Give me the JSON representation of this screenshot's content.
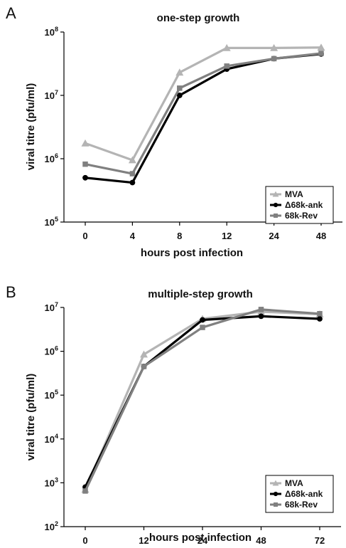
{
  "chart_data": [
    {
      "panel": "A",
      "type": "line",
      "title": "one-step growth",
      "xlabel": "hours post infection",
      "ylabel": "viral titre (pfu/ml)",
      "y_scale": "log",
      "ylim_exp": [
        5,
        8
      ],
      "y_ticks": [
        {
          "base": "10",
          "exp": "5"
        },
        {
          "base": "10",
          "exp": "6"
        },
        {
          "base": "10",
          "exp": "7"
        },
        {
          "base": "10",
          "exp": "8"
        }
      ],
      "categories": [
        "0",
        "4",
        "8",
        "12",
        "24",
        "48"
      ],
      "series": [
        {
          "name": "MVA",
          "color": "#b4b4b4",
          "marker": "triangle",
          "values": [
            1750000,
            950000,
            23000000,
            56000000,
            56000000,
            57000000
          ]
        },
        {
          "name": "Δ68k-ank",
          "color": "#000000",
          "marker": "circle",
          "values": [
            500000,
            420000,
            10000000,
            26000000,
            38000000,
            45000000
          ]
        },
        {
          "name": "68k-Rev",
          "color": "#808080",
          "marker": "square",
          "values": [
            820000,
            580000,
            13000000,
            29000000,
            38000000,
            46000000
          ]
        }
      ],
      "legend": "middle-right",
      "grid": false
    },
    {
      "panel": "B",
      "type": "line",
      "title": "multiple-step growth",
      "xlabel": "hours post infection",
      "ylabel": "viral titre (pfu/ml)",
      "y_scale": "log",
      "ylim_exp": [
        2,
        7
      ],
      "y_ticks": [
        {
          "base": "10",
          "exp": "2"
        },
        {
          "base": "10",
          "exp": "3"
        },
        {
          "base": "10",
          "exp": "4"
        },
        {
          "base": "10",
          "exp": "5"
        },
        {
          "base": "10",
          "exp": "6"
        },
        {
          "base": "10",
          "exp": "7"
        }
      ],
      "categories": [
        "0",
        "12",
        "24",
        "48",
        "72"
      ],
      "series": [
        {
          "name": "MVA",
          "color": "#b4b4b4",
          "marker": "triangle",
          "values": [
            700,
            850000,
            5500000,
            8000000,
            7000000
          ]
        },
        {
          "name": "Δ68k-ank",
          "color": "#000000",
          "marker": "circle",
          "values": [
            800,
            450000,
            5200000,
            6300000,
            5500000
          ]
        },
        {
          "name": "68k-Rev",
          "color": "#808080",
          "marker": "square",
          "values": [
            650,
            450000,
            3500000,
            9000000,
            7200000
          ]
        }
      ],
      "legend": "bottom-right",
      "grid": false
    }
  ]
}
